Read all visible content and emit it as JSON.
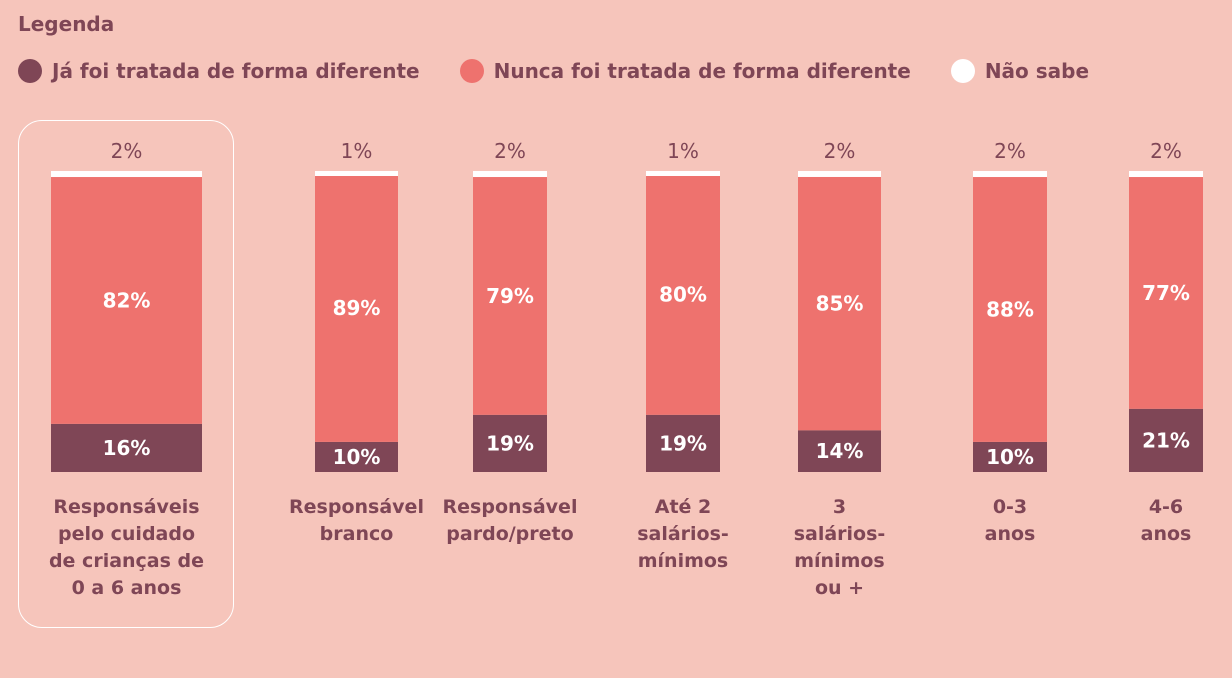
{
  "legend": {
    "title": "Legenda",
    "items": [
      {
        "label": "Já foi tratada de forma diferente",
        "color": "#7f4656"
      },
      {
        "label": "Nunca foi tratada de forma diferente",
        "color": "#ee726e"
      },
      {
        "label": "Não sabe",
        "color": "#ffffff"
      }
    ]
  },
  "chart_data": {
    "type": "bar",
    "stacked": true,
    "categories": [
      [
        "Responsáveis",
        "pelo cuidado",
        "de crianças de",
        "0 a 6 anos"
      ],
      [
        "Responsável",
        "branco"
      ],
      [
        "Responsável",
        "pardo/preto"
      ],
      [
        "Até 2",
        "salários-",
        "mínimos"
      ],
      [
        "3",
        "salários-",
        "mínimos",
        "ou +"
      ],
      [
        "0-3",
        "anos"
      ],
      [
        "4-6",
        "anos"
      ]
    ],
    "series": [
      {
        "name": "Já foi tratada de forma diferente",
        "values": [
          16,
          10,
          19,
          19,
          14,
          10,
          21
        ]
      },
      {
        "name": "Nunca foi tratada de forma diferente",
        "values": [
          82,
          89,
          79,
          80,
          85,
          88,
          77
        ]
      },
      {
        "name": "Não sabe",
        "values": [
          2,
          1,
          2,
          1,
          2,
          2,
          2
        ]
      }
    ],
    "value_suffix": "%",
    "highlighted_category_index": 0
  }
}
